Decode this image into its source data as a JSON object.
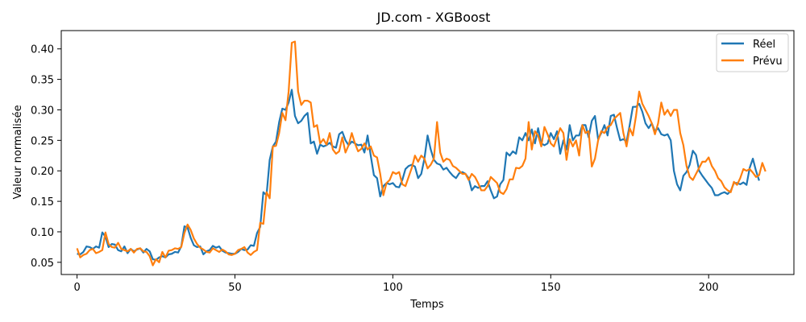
{
  "chart_data": {
    "type": "line",
    "title": "JD.com - XGBoost",
    "xlabel": "Temps",
    "ylabel": "Valeur normalisée",
    "xlim": [
      -5,
      227
    ],
    "ylim": [
      0.03,
      0.43
    ],
    "xticks": [
      0,
      50,
      100,
      150,
      200
    ],
    "yticks": [
      0.05,
      0.1,
      0.15,
      0.2,
      0.25,
      0.3,
      0.35,
      0.4
    ],
    "ytick_labels": [
      "0.05",
      "0.10",
      "0.15",
      "0.20",
      "0.25",
      "0.30",
      "0.35",
      "0.40"
    ],
    "grid": false,
    "legend": "top-right",
    "series": [
      {
        "name": "Réel",
        "color": "#1f77b4",
        "values": [
          0.064,
          0.063,
          0.067,
          0.076,
          0.075,
          0.072,
          0.076,
          0.074,
          0.099,
          0.092,
          0.075,
          0.08,
          0.079,
          0.07,
          0.068,
          0.076,
          0.065,
          0.072,
          0.068,
          0.071,
          0.073,
          0.066,
          0.072,
          0.068,
          0.055,
          0.054,
          0.058,
          0.06,
          0.058,
          0.063,
          0.064,
          0.067,
          0.066,
          0.076,
          0.109,
          0.107,
          0.09,
          0.078,
          0.075,
          0.076,
          0.063,
          0.068,
          0.07,
          0.077,
          0.074,
          0.076,
          0.069,
          0.066,
          0.065,
          0.064,
          0.064,
          0.067,
          0.072,
          0.07,
          0.071,
          0.078,
          0.077,
          0.098,
          0.108,
          0.165,
          0.16,
          0.218,
          0.24,
          0.248,
          0.28,
          0.302,
          0.3,
          0.312,
          0.333,
          0.29,
          0.278,
          0.282,
          0.29,
          0.295,
          0.245,
          0.248,
          0.228,
          0.243,
          0.24,
          0.242,
          0.246,
          0.24,
          0.238,
          0.26,
          0.264,
          0.25,
          0.242,
          0.248,
          0.245,
          0.242,
          0.243,
          0.23,
          0.258,
          0.225,
          0.193,
          0.188,
          0.158,
          0.175,
          0.18,
          0.178,
          0.18,
          0.174,
          0.173,
          0.185,
          0.203,
          0.208,
          0.21,
          0.207,
          0.188,
          0.195,
          0.22,
          0.258,
          0.235,
          0.218,
          0.212,
          0.21,
          0.202,
          0.205,
          0.198,
          0.192,
          0.188,
          0.196,
          0.198,
          0.195,
          0.188,
          0.168,
          0.175,
          0.172,
          0.175,
          0.175,
          0.183,
          0.168,
          0.155,
          0.158,
          0.178,
          0.185,
          0.23,
          0.225,
          0.232,
          0.228,
          0.255,
          0.25,
          0.262,
          0.25,
          0.268,
          0.245,
          0.27,
          0.245,
          0.242,
          0.245,
          0.262,
          0.252,
          0.265,
          0.228,
          0.25,
          0.235,
          0.275,
          0.25,
          0.258,
          0.258,
          0.275,
          0.275,
          0.255,
          0.282,
          0.29,
          0.252,
          0.262,
          0.275,
          0.258,
          0.29,
          0.292,
          0.27,
          0.25,
          0.252,
          0.248,
          0.275,
          0.305,
          0.305,
          0.31,
          0.297,
          0.278,
          0.27,
          0.278,
          0.265,
          0.27,
          0.26,
          0.258,
          0.26,
          0.25,
          0.2,
          0.178,
          0.168,
          0.192,
          0.198,
          0.21,
          0.233,
          0.226,
          0.2,
          0.192,
          0.185,
          0.178,
          0.172,
          0.16,
          0.16,
          0.163,
          0.165,
          0.162,
          0.167,
          0.18,
          0.18,
          0.178,
          0.181,
          0.177,
          0.205,
          0.22,
          0.2,
          0.184
        ]
      },
      {
        "name": "Prévu",
        "color": "#ff7f0e",
        "values": [
          0.073,
          0.058,
          0.062,
          0.064,
          0.07,
          0.072,
          0.065,
          0.067,
          0.07,
          0.099,
          0.08,
          0.075,
          0.074,
          0.082,
          0.072,
          0.07,
          0.068,
          0.072,
          0.066,
          0.072,
          0.073,
          0.068,
          0.067,
          0.06,
          0.045,
          0.055,
          0.05,
          0.067,
          0.058,
          0.069,
          0.07,
          0.073,
          0.072,
          0.075,
          0.098,
          0.112,
          0.103,
          0.089,
          0.08,
          0.074,
          0.071,
          0.067,
          0.066,
          0.073,
          0.07,
          0.067,
          0.071,
          0.068,
          0.063,
          0.062,
          0.064,
          0.07,
          0.072,
          0.075,
          0.066,
          0.062,
          0.067,
          0.07,
          0.115,
          0.113,
          0.165,
          0.155,
          0.24,
          0.241,
          0.262,
          0.295,
          0.283,
          0.33,
          0.41,
          0.412,
          0.33,
          0.308,
          0.315,
          0.315,
          0.312,
          0.272,
          0.275,
          0.245,
          0.252,
          0.243,
          0.262,
          0.235,
          0.228,
          0.232,
          0.255,
          0.23,
          0.242,
          0.262,
          0.245,
          0.232,
          0.236,
          0.245,
          0.235,
          0.24,
          0.225,
          0.222,
          0.195,
          0.16,
          0.18,
          0.185,
          0.198,
          0.195,
          0.198,
          0.178,
          0.175,
          0.19,
          0.205,
          0.225,
          0.215,
          0.225,
          0.22,
          0.204,
          0.21,
          0.22,
          0.28,
          0.23,
          0.215,
          0.22,
          0.218,
          0.208,
          0.205,
          0.2,
          0.195,
          0.195,
          0.185,
          0.195,
          0.19,
          0.18,
          0.168,
          0.168,
          0.175,
          0.19,
          0.185,
          0.18,
          0.165,
          0.162,
          0.17,
          0.186,
          0.186,
          0.205,
          0.204,
          0.208,
          0.22,
          0.28,
          0.235,
          0.265,
          0.258,
          0.24,
          0.272,
          0.26,
          0.245,
          0.24,
          0.255,
          0.27,
          0.262,
          0.218,
          0.252,
          0.24,
          0.25,
          0.225,
          0.275,
          0.262,
          0.265,
          0.207,
          0.22,
          0.25,
          0.265,
          0.262,
          0.272,
          0.275,
          0.285,
          0.29,
          0.295,
          0.262,
          0.24,
          0.27,
          0.258,
          0.29,
          0.33,
          0.31,
          0.3,
          0.29,
          0.278,
          0.26,
          0.278,
          0.312,
          0.292,
          0.3,
          0.29,
          0.3,
          0.3,
          0.262,
          0.242,
          0.208,
          0.19,
          0.185,
          0.195,
          0.205,
          0.215,
          0.215,
          0.222,
          0.208,
          0.2,
          0.188,
          0.183,
          0.173,
          0.168,
          0.165,
          0.182,
          0.177,
          0.188,
          0.203,
          0.2,
          0.203,
          0.197,
          0.19,
          0.193,
          0.213,
          0.199
        ]
      }
    ]
  }
}
